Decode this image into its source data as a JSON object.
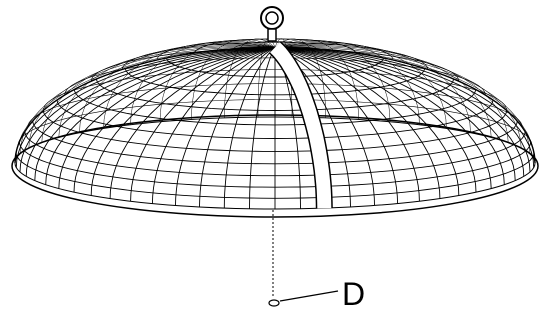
{
  "callout": {
    "label": "D"
  }
}
